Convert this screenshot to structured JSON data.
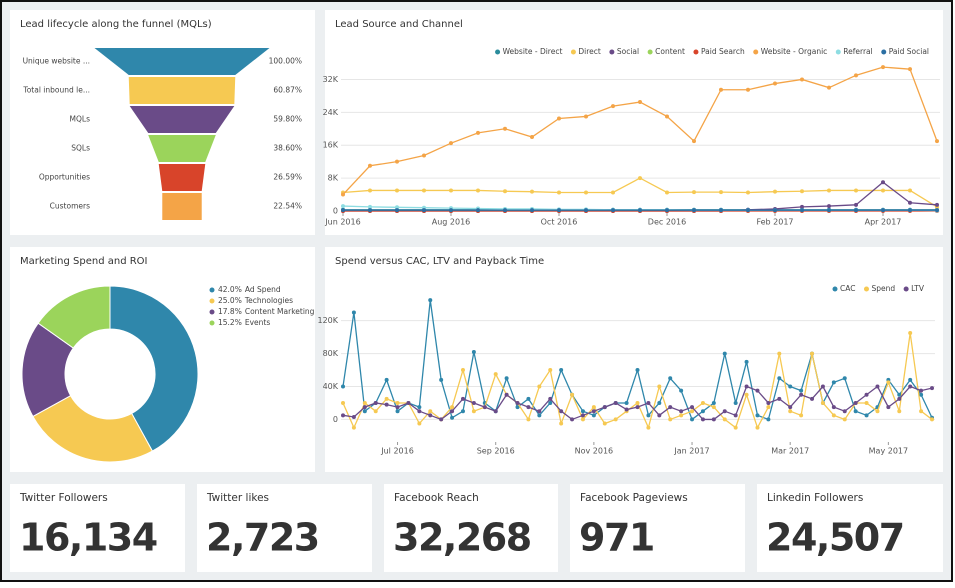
{
  "chart_data": [
    {
      "type": "funnel",
      "title": "Lead lifecycle along the funnel (MQLs)",
      "categories": [
        "Unique website ...",
        "Total inbound le...",
        "MQLs",
        "SQLs",
        "Opportunities",
        "Customers"
      ],
      "values": [
        100,
        60.87,
        59.8,
        38.6,
        26.59,
        22.54
      ],
      "value_labels": [
        "100.00%",
        "60.87%",
        "59.80%",
        "38.60%",
        "26.59%",
        "22.54%"
      ],
      "colors": [
        "#2f87ab",
        "#f6c952",
        "#6a4b88",
        "#9bd45b",
        "#d8442a",
        "#f4a447"
      ]
    },
    {
      "type": "line",
      "title": "Lead Source and Channel",
      "categories": [
        "Jun 2016",
        null,
        null,
        null,
        "Aug 2016",
        null,
        null,
        null,
        "Oct 2016",
        null,
        null,
        null,
        "Dec 2016",
        null,
        null,
        null,
        "Feb 2017",
        null,
        null,
        null,
        "Apr 2017",
        null,
        null
      ],
      "ylim": [
        0,
        36000
      ],
      "yticks": [
        0,
        {
          "value": 8000,
          "label": "8K"
        },
        {
          "value": 16000,
          "label": "16K"
        },
        {
          "value": 24000,
          "label": "24K"
        },
        {
          "value": 32000,
          "label": "32K"
        }
      ],
      "grid": true,
      "series": [
        {
          "name": "Website - Direct",
          "color": "#2a8c9c",
          "values": [
            300,
            300,
            300,
            300,
            300,
            300,
            300,
            300,
            300,
            300,
            300,
            300,
            300,
            300,
            300,
            300,
            300,
            300,
            300,
            300,
            300,
            300,
            300
          ]
        },
        {
          "name": "Direct",
          "color": "#f6c952",
          "values": [
            4500,
            5000,
            5000,
            5000,
            5000,
            5000,
            4800,
            4700,
            4500,
            4500,
            4500,
            8000,
            4500,
            4600,
            4600,
            4500,
            4700,
            4800,
            5000,
            5000,
            5000,
            5000,
            1000
          ]
        },
        {
          "name": "Social",
          "color": "#6a4b88",
          "values": [
            0,
            0,
            0,
            0,
            0,
            0,
            0,
            0,
            0,
            0,
            0,
            0,
            0,
            0,
            0,
            300,
            500,
            1000,
            1200,
            1500,
            7000,
            2000,
            1500
          ]
        },
        {
          "name": "Content",
          "color": "#9bd45b",
          "values": [
            100,
            100,
            100,
            100,
            100,
            100,
            100,
            100,
            100,
            100,
            100,
            100,
            100,
            100,
            100,
            100,
            100,
            100,
            100,
            100,
            100,
            100,
            100
          ]
        },
        {
          "name": "Paid Search",
          "color": "#d8442a",
          "values": [
            0,
            0,
            0,
            0,
            0,
            0,
            0,
            0,
            0,
            0,
            0,
            0,
            0,
            0,
            0,
            0,
            0,
            0,
            0,
            0,
            0,
            0,
            0
          ]
        },
        {
          "name": "Website - Organic",
          "color": "#f4a447",
          "values": [
            4000,
            11000,
            12000,
            13500,
            16500,
            19000,
            20000,
            18000,
            22500,
            23000,
            25500,
            26500,
            23000,
            17000,
            29500,
            29500,
            31000,
            32000,
            30000,
            33000,
            35000,
            34500,
            17000
          ]
        },
        {
          "name": "Referral",
          "color": "#8edde2",
          "values": [
            1200,
            1000,
            900,
            800,
            700,
            600,
            500,
            500,
            400,
            400,
            300,
            300,
            300,
            200,
            200,
            200,
            200,
            200,
            200,
            200,
            200,
            200,
            100
          ]
        },
        {
          "name": "Paid Social",
          "color": "#2b6fa3",
          "values": [
            200,
            200,
            200,
            200,
            200,
            200,
            200,
            200,
            200,
            200,
            200,
            200,
            200,
            200,
            200,
            200,
            200,
            200,
            200,
            200,
            200,
            200,
            200
          ]
        }
      ]
    },
    {
      "type": "pie",
      "title": "Marketing Spend and ROI",
      "categories": [
        "Ad Spend",
        "Technologies",
        "Content Marketing",
        "Events"
      ],
      "values": [
        42.0,
        25.0,
        17.8,
        15.2
      ],
      "value_labels": [
        "42.0%",
        "25.0%",
        "17.8%",
        "15.2%"
      ],
      "colors": [
        "#2f87ab",
        "#f6c952",
        "#6a4b88",
        "#9bd45b"
      ]
    },
    {
      "type": "line",
      "title": "Spend versus CAC, LTV and Payback Time",
      "categories": [
        null,
        null,
        null,
        null,
        null,
        "Jul 2016",
        null,
        null,
        null,
        null,
        null,
        null,
        null,
        null,
        "Sep 2016",
        null,
        null,
        null,
        null,
        null,
        null,
        null,
        null,
        "Nov 2016",
        null,
        null,
        null,
        null,
        null,
        null,
        null,
        null,
        "Jan 2017",
        null,
        null,
        null,
        null,
        null,
        null,
        null,
        null,
        "Mar 2017",
        null,
        null,
        null,
        null,
        null,
        null,
        null,
        null,
        "May 2017",
        null,
        null,
        null,
        null
      ],
      "ylim": [
        -25000,
        150000
      ],
      "yticks": [
        0,
        {
          "value": 40000,
          "label": "40K"
        },
        {
          "value": 80000,
          "label": "80K"
        },
        {
          "value": 120000,
          "label": "120K"
        }
      ],
      "grid": true,
      "series": [
        {
          "name": "CAC",
          "color": "#2f87ab",
          "values": [
            40000,
            130000,
            10000,
            20000,
            48000,
            10000,
            20000,
            15000,
            145000,
            48000,
            2000,
            10000,
            82000,
            20000,
            10000,
            50000,
            15000,
            25000,
            5000,
            20000,
            60000,
            30000,
            10000,
            5000,
            15000,
            20000,
            20000,
            60000,
            5000,
            20000,
            50000,
            35000,
            0,
            10000,
            20000,
            80000,
            20000,
            70000,
            5000,
            0,
            50000,
            40000,
            35000,
            80000,
            20000,
            45000,
            50000,
            10000,
            5000,
            15000,
            48000,
            30000,
            48000,
            30000,
            2000
          ]
        },
        {
          "name": "Spend",
          "color": "#f6c952",
          "values": [
            20000,
            -10000,
            20000,
            10000,
            25000,
            20000,
            20000,
            -5000,
            10000,
            0,
            15000,
            60000,
            10000,
            15000,
            55000,
            30000,
            20000,
            0,
            40000,
            60000,
            -5000,
            30000,
            0,
            15000,
            -5000,
            0,
            10000,
            20000,
            -10000,
            40000,
            0,
            5000,
            10000,
            20000,
            15000,
            0,
            -10000,
            30000,
            -10000,
            15000,
            80000,
            10000,
            5000,
            80000,
            20000,
            5000,
            0,
            20000,
            20000,
            10000,
            45000,
            10000,
            105000,
            10000,
            0
          ]
        },
        {
          "name": "LTV",
          "color": "#6a4b88",
          "values": [
            5000,
            3000,
            15000,
            20000,
            18000,
            15000,
            20000,
            10000,
            5000,
            0,
            10000,
            25000,
            20000,
            15000,
            10000,
            30000,
            20000,
            15000,
            10000,
            25000,
            10000,
            0,
            5000,
            10000,
            15000,
            20000,
            12000,
            15000,
            20000,
            5000,
            15000,
            10000,
            15000,
            0,
            0,
            10000,
            5000,
            40000,
            35000,
            20000,
            25000,
            15000,
            30000,
            25000,
            40000,
            15000,
            10000,
            20000,
            30000,
            40000,
            15000,
            25000,
            40000,
            35000,
            38000
          ]
        }
      ]
    }
  ],
  "kpis": [
    {
      "label": "Twitter Followers",
      "value": "16,134"
    },
    {
      "label": "Twitter likes",
      "value": "2,723"
    },
    {
      "label": "Facebook Reach",
      "value": "32,268"
    },
    {
      "label": "Facebook Pageviews",
      "value": "971"
    },
    {
      "label": "Linkedin Followers",
      "value": "24,507"
    }
  ]
}
